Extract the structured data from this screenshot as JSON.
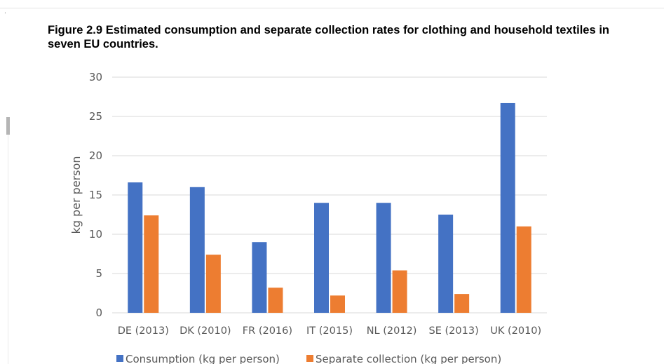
{
  "page": {
    "corner_mark": "."
  },
  "figure": {
    "title": "Figure 2.9 Estimated consumption and separate collection rates for clothing and household textiles in seven EU countries."
  },
  "colors": {
    "consumption": "#4472C4",
    "separate_collection": "#ED7D31",
    "gridline": "#d9d9d9",
    "axis_text": "#595959"
  },
  "chart_data": {
    "type": "bar",
    "title": "",
    "xlabel": "",
    "ylabel": "kg per person",
    "ylim": [
      0,
      30
    ],
    "yticks": [
      0,
      5,
      10,
      15,
      20,
      25,
      30
    ],
    "grid": true,
    "legend_position": "bottom",
    "categories": [
      "DE (2013)",
      "DK (2010)",
      "FR (2016)",
      "IT (2015)",
      "NL (2012)",
      "SE (2013)",
      "UK (2010)"
    ],
    "series": [
      {
        "name": "Consumption (kg per person)",
        "color": "#4472C4",
        "values": [
          16.6,
          16.0,
          9.0,
          14.0,
          14.0,
          12.5,
          26.7
        ]
      },
      {
        "name": "Separate collection (kg per person)",
        "color": "#ED7D31",
        "values": [
          12.4,
          7.4,
          3.2,
          2.2,
          5.4,
          2.4,
          11.0
        ]
      }
    ]
  }
}
